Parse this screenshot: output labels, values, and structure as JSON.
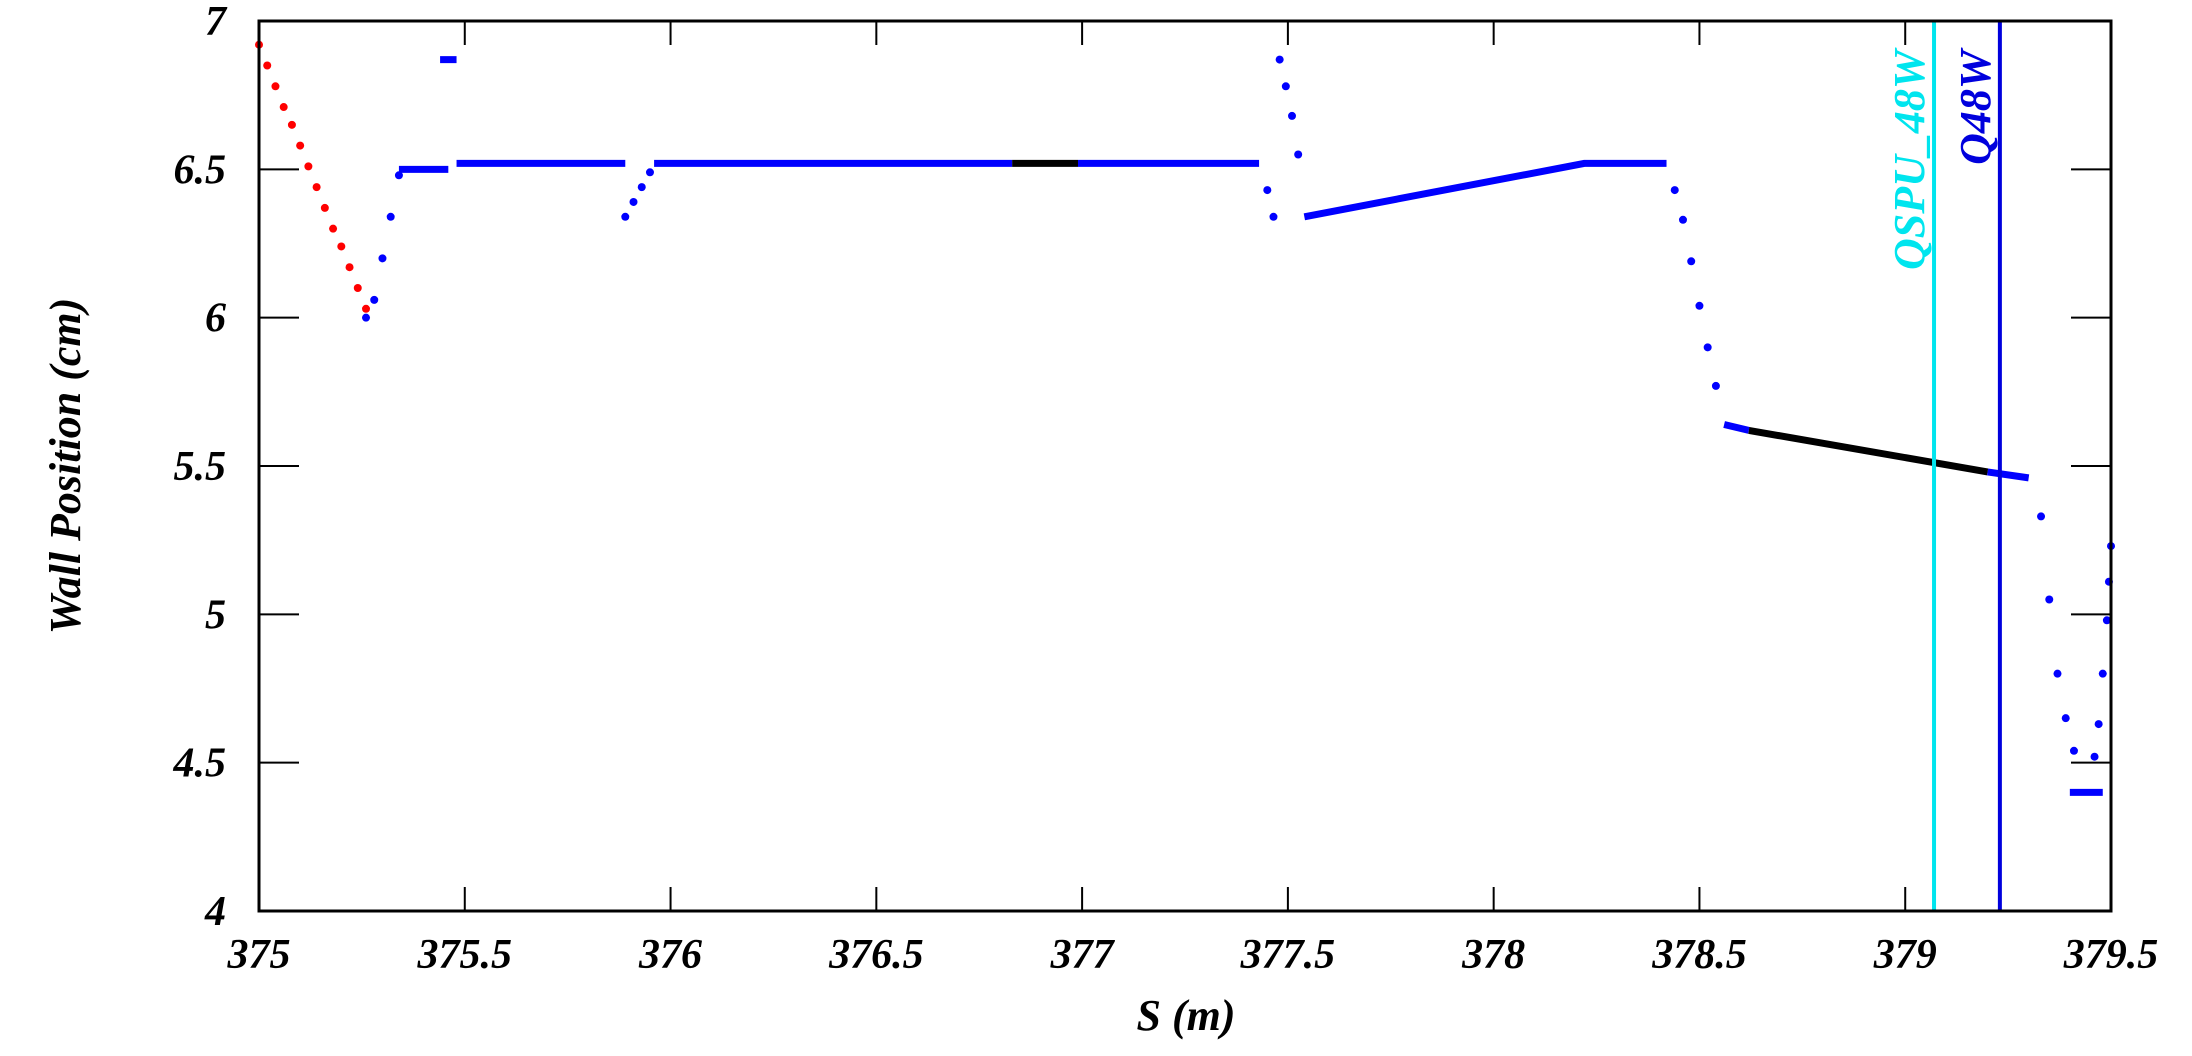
{
  "chart_data": {
    "type": "scatter",
    "x_label": "S (m)",
    "y_label": "Wall Position (cm)",
    "xlim": [
      375,
      379.5
    ],
    "ylim": [
      4,
      7
    ],
    "xticks": [
      375,
      375.5,
      376,
      376.5,
      377,
      377.5,
      378,
      378.5,
      379,
      379.5
    ],
    "yticks": [
      4,
      4.5,
      5,
      5.5,
      6,
      6.5,
      7
    ],
    "series": [
      {
        "color": "#ff0000",
        "marker": "dot",
        "x": [
          375.0,
          375.02,
          375.04,
          375.06,
          375.08,
          375.1,
          375.12,
          375.14,
          375.16,
          375.18,
          375.2,
          375.22,
          375.24,
          375.26
        ],
        "values": [
          6.92,
          6.85,
          6.78,
          6.71,
          6.65,
          6.58,
          6.51,
          6.44,
          6.37,
          6.3,
          6.24,
          6.17,
          6.1,
          6.03
        ]
      },
      {
        "color": "#0000ff",
        "marker": "dot",
        "x": [
          375.26,
          375.28,
          375.3,
          375.32,
          375.34,
          375.89,
          375.91,
          375.93,
          375.95,
          377.45,
          377.465,
          377.48,
          377.495,
          377.51,
          377.525,
          378.44,
          378.46,
          378.48,
          378.5,
          378.52,
          378.54,
          379.33,
          379.35,
          379.37,
          379.39,
          379.41,
          379.46,
          379.47,
          379.48,
          379.49,
          379.495,
          379.5
        ],
        "values": [
          6.0,
          6.06,
          6.2,
          6.34,
          6.48,
          6.34,
          6.39,
          6.44,
          6.49,
          6.43,
          6.34,
          6.87,
          6.78,
          6.68,
          6.55,
          6.43,
          6.33,
          6.19,
          6.04,
          5.9,
          5.77,
          5.33,
          5.05,
          4.8,
          4.65,
          4.54,
          4.52,
          4.63,
          4.8,
          4.98,
          5.11,
          5.23
        ]
      },
      {
        "color": "#0000ff",
        "marker": "line",
        "x": [
          375.34,
          375.46,
          null,
          375.44,
          375.48,
          null,
          375.48,
          375.89,
          null,
          375.96,
          376.83,
          null,
          376.99,
          377.43,
          null,
          377.54,
          378.22,
          378.42,
          null,
          378.56,
          378.62,
          null,
          379.2,
          379.3,
          null,
          379.4,
          379.48
        ],
        "values": [
          6.5,
          6.5,
          null,
          6.87,
          6.87,
          null,
          6.52,
          6.52,
          null,
          6.52,
          6.52,
          null,
          6.52,
          6.52,
          null,
          6.34,
          6.52,
          6.52,
          null,
          5.64,
          5.62,
          null,
          5.48,
          5.46,
          null,
          4.4,
          4.4
        ]
      },
      {
        "color": "#000000",
        "marker": "line",
        "x": [
          376.83,
          376.99,
          null,
          378.62,
          379.2
        ],
        "values": [
          6.52,
          6.52,
          null,
          5.62,
          5.48
        ]
      }
    ],
    "vlines": [
      {
        "x": 379.07,
        "label": "QSPU_48W",
        "color": "#00e5ee"
      },
      {
        "x": 379.23,
        "label": "Q48W",
        "color": "#0000dd"
      }
    ]
  }
}
